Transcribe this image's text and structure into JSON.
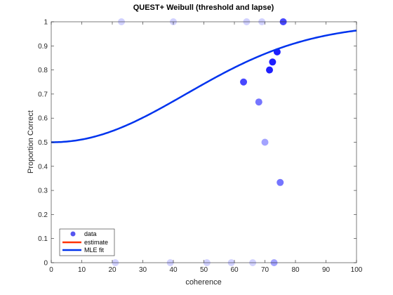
{
  "chart_data": {
    "type": "scatter",
    "title": "QUEST+ Weibull (threshold and lapse)",
    "xlabel": "coherence",
    "ylabel": "Proportion Correct",
    "xlim": [
      0,
      100
    ],
    "ylim": [
      0,
      1
    ],
    "xticks": [
      "0",
      "10",
      "20",
      "30",
      "40",
      "50",
      "60",
      "70",
      "80",
      "90",
      "100"
    ],
    "yticks": [
      "0",
      "0.1",
      "0.2",
      "0.3",
      "0.4",
      "0.5",
      "0.6",
      "0.7",
      "0.8",
      "0.9",
      "1"
    ],
    "grid": false,
    "legend_position": "bottom-left",
    "legend": [
      "data",
      "estimate",
      "MLE fit"
    ],
    "colors": {
      "data": "#0000ff",
      "estimate": "#ff3300",
      "fit": "#0033ee"
    },
    "points": [
      {
        "x": 23,
        "y": 1,
        "w": 1
      },
      {
        "x": 40,
        "y": 1,
        "w": 1
      },
      {
        "x": 64,
        "y": 1,
        "w": 1
      },
      {
        "x": 69,
        "y": 1,
        "w": 1
      },
      {
        "x": 76,
        "y": 1,
        "w": 4
      },
      {
        "x": 74,
        "y": 0.875,
        "w": 8
      },
      {
        "x": 72.5,
        "y": 0.833,
        "w": 6
      },
      {
        "x": 71.5,
        "y": 0.8,
        "w": 5
      },
      {
        "x": 63,
        "y": 0.75,
        "w": 4
      },
      {
        "x": 68,
        "y": 0.667,
        "w": 3
      },
      {
        "x": 70,
        "y": 0.5,
        "w": 2
      },
      {
        "x": 75,
        "y": 0.333,
        "w": 3
      },
      {
        "x": 21,
        "y": 0,
        "w": 1
      },
      {
        "x": 39,
        "y": 0,
        "w": 1
      },
      {
        "x": 51,
        "y": 0,
        "w": 1
      },
      {
        "x": 59,
        "y": 0,
        "w": 1
      },
      {
        "x": 66,
        "y": 0,
        "w": 1
      },
      {
        "x": 73,
        "y": 0,
        "w": 2
      }
    ],
    "fit": {
      "guess": 0.5,
      "lapse": 0.01,
      "threshold": 60,
      "slope": 2.1
    }
  }
}
